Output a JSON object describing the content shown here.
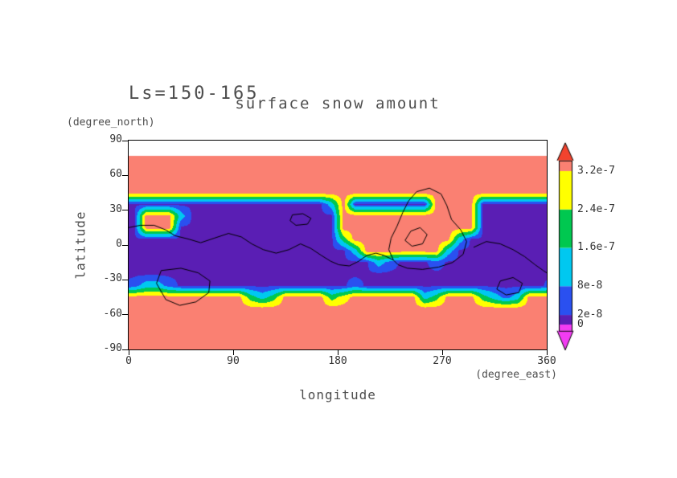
{
  "title": "surface snow amount",
  "subtitle_ls": "Ls=150-165",
  "axes": {
    "y_label": "latitude",
    "y_unit": "(degree_north)",
    "x_label": "longitude",
    "x_unit": "(degree_east)",
    "x_ticks": [
      0,
      90,
      180,
      270,
      360
    ],
    "y_ticks": [
      90,
      60,
      30,
      0,
      -30,
      -60,
      -90
    ],
    "x_range": [
      0,
      360
    ],
    "y_range": [
      -90,
      90
    ]
  },
  "colorbar": {
    "units_scale": "1e-7",
    "tick_labels": [
      {
        "value": 3.2,
        "label": "3.2e-7"
      },
      {
        "value": 2.4,
        "label": "2.4e-7"
      },
      {
        "value": 1.6,
        "label": "1.6e-7"
      },
      {
        "value": 0.8,
        "label": "8e-8"
      },
      {
        "value": 0.2,
        "label": "2e-8"
      },
      {
        "value": 0,
        "label": "0"
      }
    ],
    "segments": [
      {
        "from": -0.13,
        "to": 0,
        "color": "#f23cf2"
      },
      {
        "from": 0,
        "to": 0.2,
        "color": "#5a1eb4"
      },
      {
        "from": 0.2,
        "to": 0.8,
        "color": "#2a50f0"
      },
      {
        "from": 0.8,
        "to": 1.6,
        "color": "#00c8f0"
      },
      {
        "from": 1.6,
        "to": 2.4,
        "color": "#00c850"
      },
      {
        "from": 2.4,
        "to": 3.2,
        "color": "#ffff00"
      },
      {
        "from": 3.2,
        "to": 3.42,
        "color": "#fa8072"
      }
    ],
    "arrow_top_color": "#f2432e",
    "arrow_bottom_color": "#f23cf2"
  },
  "chart_data": {
    "type": "heatmap",
    "title": "surface snow amount",
    "season": "Ls=150-165",
    "xlabel": "longitude (degree_east)",
    "ylabel": "latitude (degree_north)",
    "value_units": "1e-7",
    "xlim": [
      0,
      360
    ],
    "ylim": [
      -90,
      90
    ],
    "levels": {
      "thresholds": [
        0,
        0.2,
        0.8,
        1.6,
        2.4,
        3.2
      ],
      "colors": [
        "#f23cf2",
        "#5a1eb4",
        "#2a50f0",
        "#00c8f0",
        "#00c850",
        "#ffff00",
        "#fa8072"
      ]
    },
    "nodata_color": "#ffffff",
    "grid": {
      "lon_centers": [
        5,
        15,
        25,
        35,
        45,
        55,
        65,
        75,
        85,
        95,
        105,
        115,
        125,
        135,
        145,
        155,
        165,
        175,
        185,
        195,
        205,
        215,
        225,
        235,
        245,
        255,
        265,
        275,
        285,
        295,
        305,
        315,
        325,
        335,
        345,
        355
      ],
      "lat_centers": [
        85,
        75,
        65,
        55,
        45,
        35,
        25,
        15,
        5,
        -5,
        -15,
        -25,
        -35,
        -45,
        -55,
        -65,
        -75,
        -85
      ],
      "values": [
        [
          null,
          null,
          null,
          null,
          null,
          null,
          null,
          null,
          null,
          null,
          null,
          null,
          null,
          null,
          null,
          null,
          null,
          null,
          null,
          null,
          null,
          null,
          null,
          null,
          null,
          null,
          null,
          null,
          null,
          null,
          null,
          null,
          null,
          null,
          null,
          null
        ],
        [
          3.5,
          3.5,
          3.5,
          3.5,
          3.5,
          3.5,
          3.5,
          3.5,
          3.5,
          3.5,
          3.5,
          3.5,
          3.5,
          3.5,
          3.5,
          3.5,
          3.5,
          3.5,
          3.5,
          3.5,
          3.5,
          3.5,
          3.5,
          3.5,
          3.5,
          3.5,
          3.5,
          3.5,
          3.5,
          3.5,
          3.5,
          3.5,
          3.5,
          3.5,
          3.5,
          3.5
        ],
        [
          3.5,
          3.5,
          3.5,
          3.5,
          3.5,
          3.5,
          3.5,
          3.5,
          3.5,
          3.5,
          3.5,
          3.5,
          3.5,
          3.5,
          3.5,
          3.5,
          3.5,
          3.5,
          3.5,
          3.5,
          3.5,
          3.5,
          3.5,
          3.5,
          3.5,
          3.5,
          3.5,
          3.5,
          3.5,
          3.5,
          3.5,
          3.5,
          3.5,
          3.5,
          3.5,
          3.5
        ],
        [
          3.5,
          3.5,
          3.5,
          3.5,
          3.5,
          3.5,
          3.5,
          3.5,
          3.5,
          3.5,
          3.5,
          3.5,
          3.5,
          3.5,
          3.5,
          3.5,
          3.5,
          3.5,
          3.5,
          3.5,
          3.5,
          3.5,
          3.5,
          3.5,
          3.5,
          3.5,
          3.5,
          3.5,
          3.5,
          3.5,
          3.5,
          3.5,
          3.5,
          3.5,
          3.5,
          3.5
        ],
        [
          3.5,
          3.5,
          3.5,
          3.5,
          3.5,
          3.5,
          3.5,
          3.5,
          3.5,
          3.5,
          3.5,
          3.5,
          3.5,
          3.5,
          3.5,
          3.5,
          3.5,
          3.5,
          3.5,
          3.5,
          3.5,
          3.5,
          3.5,
          3.5,
          3.5,
          3.5,
          3.5,
          3.5,
          3.5,
          3.5,
          3.5,
          3.5,
          3.5,
          3.5,
          3.5,
          3.5
        ],
        [
          0.1,
          0.1,
          0.1,
          0.1,
          0.1,
          0.1,
          0.1,
          0.1,
          0.1,
          0.1,
          0.1,
          0.1,
          0.1,
          0.1,
          0.1,
          0.1,
          0.1,
          1.2,
          3.5,
          0.1,
          0.1,
          0.1,
          0.1,
          0.1,
          0.1,
          0.1,
          3.5,
          3.5,
          3.5,
          3.5,
          0.1,
          0.1,
          0.1,
          0.1,
          0.1,
          0.1
        ],
        [
          0.1,
          3.5,
          3.5,
          3.5,
          1.2,
          0.1,
          0.1,
          0.1,
          0.1,
          0.1,
          0.1,
          0.1,
          0.1,
          0.1,
          0.1,
          0.1,
          0.1,
          0.1,
          3.5,
          3.5,
          3.5,
          3.5,
          3.5,
          3.5,
          3.5,
          3.5,
          3.5,
          3.5,
          3.5,
          3.5,
          0.1,
          0.1,
          0.1,
          0.1,
          0.1,
          0.1
        ],
        [
          0.1,
          3.5,
          3.5,
          3.5,
          0.1,
          0.1,
          0.1,
          0.1,
          0.1,
          0.1,
          0.1,
          0.1,
          0.1,
          0.1,
          0.1,
          0.1,
          0.1,
          0.1,
          3.5,
          3.5,
          3.5,
          3.5,
          3.5,
          3.5,
          3.5,
          3.5,
          3.5,
          3.5,
          3.5,
          3.5,
          0.1,
          0.1,
          0.1,
          0.1,
          0.1,
          0.1
        ],
        [
          0.1,
          0.1,
          0.1,
          0.1,
          0.1,
          0.1,
          0.1,
          0.1,
          0.1,
          0.1,
          0.1,
          0.1,
          0.1,
          0.1,
          0.1,
          0.1,
          0.1,
          0.1,
          2.0,
          3.5,
          3.5,
          3.5,
          3.5,
          3.5,
          3.5,
          3.5,
          3.5,
          3.5,
          1.2,
          0.1,
          0.1,
          0.1,
          0.1,
          0.1,
          0.1,
          0.1
        ],
        [
          0.1,
          0.1,
          0.1,
          0.1,
          0.1,
          0.1,
          0.1,
          0.1,
          0.1,
          0.1,
          0.1,
          0.1,
          0.1,
          0.1,
          0.1,
          0.1,
          0.1,
          0.1,
          0.1,
          1.2,
          3.5,
          3.5,
          3.5,
          3.5,
          3.5,
          3.5,
          3.5,
          1.2,
          0.1,
          0.1,
          0.1,
          0.1,
          0.1,
          0.1,
          0.1,
          0.1
        ],
        [
          0.1,
          0.1,
          0.1,
          0.1,
          0.1,
          0.1,
          0.1,
          0.1,
          0.1,
          0.1,
          0.1,
          0.1,
          0.1,
          0.1,
          0.1,
          0.1,
          0.1,
          0.1,
          0.1,
          0.1,
          0.1,
          1.2,
          0.5,
          0.1,
          0.1,
          0.1,
          0.5,
          0.1,
          0.1,
          0.1,
          0.1,
          0.1,
          0.1,
          0.1,
          0.1,
          0.1
        ],
        [
          0.1,
          0.1,
          0.1,
          0.1,
          0.1,
          0.1,
          0.1,
          0.1,
          0.1,
          0.1,
          0.1,
          0.1,
          0.1,
          0.1,
          0.1,
          0.1,
          0.1,
          0.1,
          0.1,
          0.1,
          0.1,
          0.1,
          0.1,
          0.1,
          0.1,
          0.1,
          0.1,
          0.1,
          0.1,
          0.1,
          0.1,
          0.1,
          0.1,
          0.1,
          0.1,
          0.1
        ],
        [
          0.5,
          1.2,
          1.2,
          0.5,
          0.1,
          0.1,
          0.1,
          0.1,
          0.1,
          0.1,
          0.1,
          0.1,
          0.1,
          0.1,
          0.1,
          0.1,
          0.1,
          0.1,
          0.1,
          0.5,
          0.1,
          0.1,
          0.1,
          0.1,
          0.1,
          0.1,
          0.1,
          0.1,
          0.1,
          0.1,
          0.1,
          0.1,
          0.1,
          0.1,
          0.1,
          0.1
        ],
        [
          3.5,
          3.5,
          3.5,
          3.5,
          3.5,
          3.5,
          3.5,
          3.5,
          3.5,
          3.5,
          2.0,
          1.2,
          2.0,
          3.5,
          3.5,
          3.5,
          3.5,
          2.0,
          2.8,
          3.5,
          3.5,
          3.5,
          3.5,
          3.5,
          3.5,
          1.2,
          2.0,
          3.5,
          3.5,
          3.5,
          2.0,
          1.2,
          0.5,
          1.2,
          3.5,
          3.5
        ],
        [
          3.5,
          3.5,
          3.5,
          3.5,
          3.5,
          3.5,
          3.5,
          3.5,
          3.5,
          3.5,
          3.5,
          3.5,
          3.5,
          3.5,
          3.5,
          3.5,
          3.5,
          3.5,
          3.5,
          3.5,
          3.5,
          3.5,
          3.5,
          3.5,
          3.5,
          3.5,
          3.5,
          3.5,
          3.5,
          3.5,
          3.5,
          3.5,
          3.5,
          3.5,
          3.5,
          3.5
        ],
        [
          3.5,
          3.5,
          3.5,
          3.5,
          3.5,
          3.5,
          3.5,
          3.5,
          3.5,
          3.5,
          3.5,
          3.5,
          3.5,
          3.5,
          3.5,
          3.5,
          3.5,
          3.5,
          3.5,
          3.5,
          3.5,
          3.5,
          3.5,
          3.5,
          3.5,
          3.5,
          3.5,
          3.5,
          3.5,
          3.5,
          3.5,
          3.5,
          3.5,
          3.5,
          3.5,
          3.5
        ],
        [
          3.5,
          3.5,
          3.5,
          3.5,
          3.5,
          3.5,
          3.5,
          3.5,
          3.5,
          3.5,
          3.5,
          3.5,
          3.5,
          3.5,
          3.5,
          3.5,
          3.5,
          3.5,
          3.5,
          3.5,
          3.5,
          3.5,
          3.5,
          3.5,
          3.5,
          3.5,
          3.5,
          3.5,
          3.5,
          3.5,
          3.5,
          3.5,
          3.5,
          3.5,
          3.5,
          3.5
        ],
        [
          3.5,
          3.5,
          3.5,
          3.5,
          3.5,
          3.5,
          3.5,
          3.5,
          3.5,
          3.5,
          3.5,
          3.5,
          3.5,
          3.5,
          3.5,
          3.5,
          3.5,
          3.5,
          3.5,
          3.5,
          3.5,
          3.5,
          3.5,
          3.5,
          3.5,
          3.5,
          3.5,
          3.5,
          3.5,
          3.5,
          3.5,
          3.5,
          3.5,
          3.5,
          3.5,
          3.5
        ]
      ]
    },
    "contours": {
      "color": "#000000",
      "paths": [
        [
          [
            28,
            -22
          ],
          [
            45,
            -20
          ],
          [
            60,
            -24
          ],
          [
            70,
            -31
          ],
          [
            69,
            -41
          ],
          [
            58,
            -49
          ],
          [
            44,
            -52
          ],
          [
            32,
            -47
          ],
          [
            24,
            -33
          ],
          [
            28,
            -22
          ]
        ],
        [
          [
            0,
            15
          ],
          [
            10,
            17
          ],
          [
            22,
            17
          ],
          [
            32,
            13
          ],
          [
            40,
            8
          ],
          [
            52,
            5
          ],
          [
            62,
            2
          ],
          [
            74,
            6
          ],
          [
            86,
            10
          ],
          [
            97,
            7
          ],
          [
            106,
            1
          ],
          [
            116,
            -4
          ],
          [
            127,
            -7
          ],
          [
            138,
            -4
          ],
          [
            148,
            1
          ],
          [
            157,
            -3
          ],
          [
            166,
            -9
          ],
          [
            174,
            -14
          ],
          [
            181,
            -17
          ],
          [
            190,
            -18
          ],
          [
            198,
            -14
          ],
          [
            205,
            -9
          ],
          [
            213,
            -7
          ],
          [
            220,
            -9
          ],
          [
            228,
            -13
          ]
        ],
        [
          [
            141,
            26
          ],
          [
            150,
            27
          ],
          [
            157,
            23
          ],
          [
            154,
            18
          ],
          [
            144,
            17
          ],
          [
            139,
            21
          ],
          [
            141,
            26
          ]
        ],
        [
          [
            228,
            -13
          ],
          [
            224,
            -4
          ],
          [
            226,
            6
          ],
          [
            231,
            16
          ],
          [
            236,
            28
          ],
          [
            241,
            38
          ],
          [
            248,
            46
          ],
          [
            259,
            49
          ],
          [
            269,
            44
          ],
          [
            274,
            34
          ],
          [
            278,
            22
          ],
          [
            286,
            13
          ],
          [
            291,
            3
          ],
          [
            288,
            -8
          ],
          [
            279,
            -15
          ],
          [
            267,
            -19
          ],
          [
            253,
            -21
          ],
          [
            240,
            -20
          ],
          [
            232,
            -17
          ],
          [
            228,
            -13
          ]
        ],
        [
          [
            238,
            4
          ],
          [
            243,
            12
          ],
          [
            251,
            15
          ],
          [
            257,
            9
          ],
          [
            253,
            1
          ],
          [
            244,
            -1
          ],
          [
            238,
            4
          ]
        ],
        [
          [
            297,
            -2
          ],
          [
            308,
            3
          ],
          [
            320,
            1
          ],
          [
            331,
            -4
          ],
          [
            341,
            -10
          ],
          [
            350,
            -17
          ],
          [
            357,
            -22
          ],
          [
            360,
            -24
          ]
        ],
        [
          [
            320,
            -31
          ],
          [
            331,
            -28
          ],
          [
            339,
            -33
          ],
          [
            336,
            -41
          ],
          [
            325,
            -43
          ],
          [
            317,
            -38
          ],
          [
            320,
            -31
          ]
        ]
      ]
    }
  }
}
